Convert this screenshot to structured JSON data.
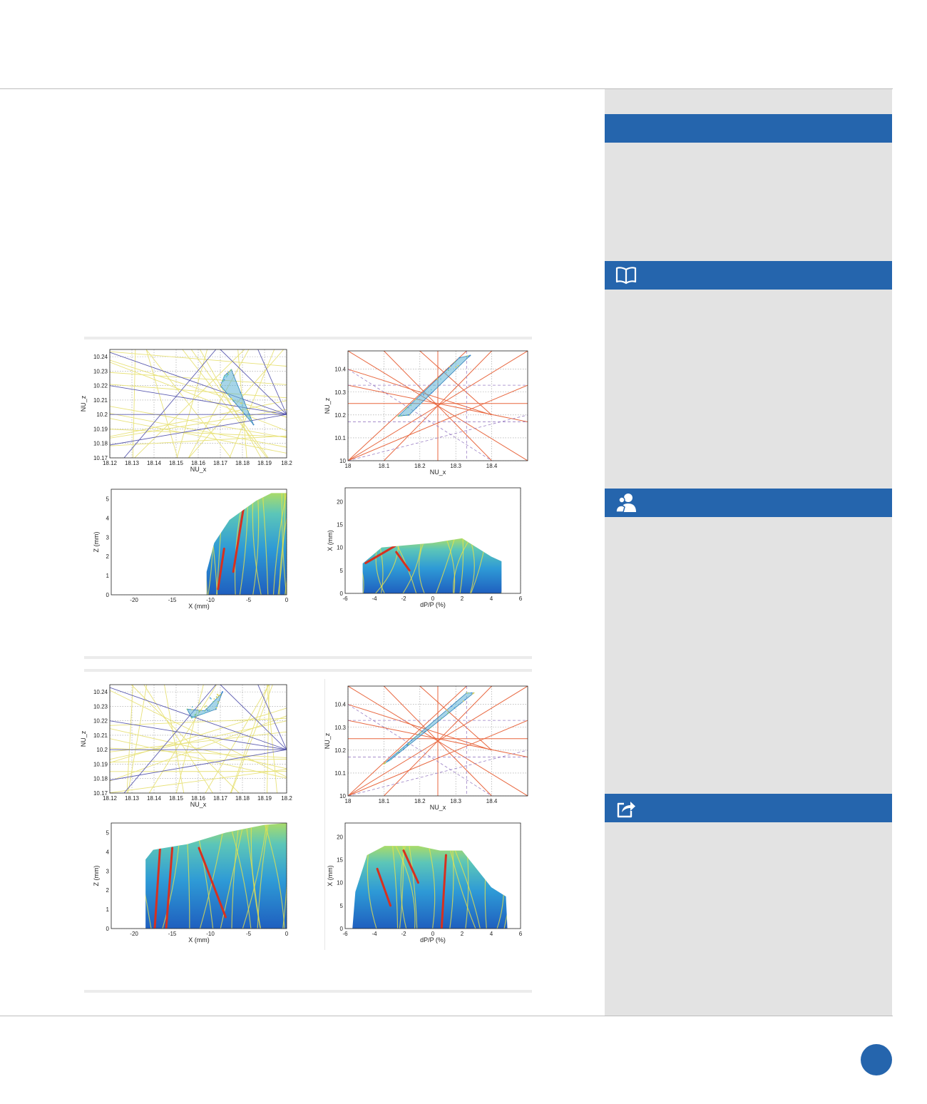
{
  "colors": {
    "accent": "#2565ad",
    "sidebar_bg": "#e3e3e3",
    "tune_lines_blue": "#5b5bb0",
    "tune_lines_yellow": "#e8e27a",
    "resonance_lines_red": "#e8673f",
    "resonance_lines_purple": "#9a7fc4"
  },
  "sidebar": {
    "sections": [
      {
        "icon": "none"
      },
      {
        "icon": "book-icon"
      },
      {
        "icon": "people-icon"
      },
      {
        "icon": "share-icon"
      }
    ]
  },
  "page_number": "",
  "chart_data": [
    {
      "type": "scatter",
      "panel": 1,
      "title": "",
      "xlabel": "NU_x",
      "ylabel": "NU_z",
      "xlim": [
        18.12,
        18.2
      ],
      "ylim": [
        10.17,
        10.245
      ],
      "xticks": [
        18.12,
        18.13,
        18.14,
        18.15,
        18.16,
        18.17,
        18.18,
        18.19,
        18.2
      ],
      "xticklabels": [
        "18.12",
        "18.13",
        "18.14",
        "18.15",
        "18.16",
        "18.17",
        "18.18",
        "18.19",
        "18.2"
      ],
      "yticks": [
        10.17,
        10.18,
        10.19,
        10.2,
        10.21,
        10.22,
        10.23,
        10.24
      ],
      "yticklabels": [
        "10.17",
        "10.18",
        "10.19",
        "10.2",
        "10.21",
        "10.22",
        "10.23",
        "10.24"
      ],
      "grid": true,
      "tune_footprint": [
        [
          18.172,
          10.227
        ],
        [
          18.175,
          10.231
        ],
        [
          18.185,
          10.193
        ],
        [
          18.17,
          10.22
        ],
        [
          18.172,
          10.227
        ]
      ]
    },
    {
      "type": "scatter",
      "panel": 1,
      "title": "",
      "xlabel": "NU_x",
      "ylabel": "NU_z",
      "xlim": [
        18.0,
        18.5
      ],
      "ylim": [
        10.0,
        10.48
      ],
      "xticks": [
        18.0,
        18.1,
        18.2,
        18.3,
        18.4
      ],
      "xticklabels": [
        "18",
        "18.1",
        "18.2",
        "18.3",
        "18.4"
      ],
      "yticks": [
        10.0,
        10.1,
        10.2,
        10.3,
        10.4
      ],
      "yticklabels": [
        "10",
        "10.1",
        "10.2",
        "10.3",
        "10.4"
      ],
      "grid": true,
      "tune_footprint": [
        [
          18.14,
          10.195
        ],
        [
          18.17,
          10.2
        ],
        [
          18.34,
          10.46
        ],
        [
          18.31,
          10.45
        ],
        [
          18.14,
          10.195
        ]
      ]
    },
    {
      "type": "heatmap",
      "panel": 1,
      "title": "",
      "xlabel": "X (mm)",
      "ylabel": "Z (mm)",
      "xlim": [
        -23,
        0
      ],
      "ylim": [
        0,
        5.5
      ],
      "xticks": [
        -20,
        -15,
        -10,
        -5,
        0
      ],
      "xticklabels": [
        "-20",
        "-15",
        "-10",
        "-5",
        "0"
      ],
      "yticks": [
        0,
        1,
        2,
        3,
        4,
        5
      ],
      "yticklabels": [
        "0",
        "1",
        "2",
        "3",
        "4",
        "5"
      ],
      "grid": true,
      "region_boundary": [
        [
          -10.5,
          0
        ],
        [
          -10.5,
          1.2
        ],
        [
          -9.5,
          2.7
        ],
        [
          -7.5,
          3.9
        ],
        [
          -4,
          4.9
        ],
        [
          -2,
          5.3
        ],
        [
          0,
          5.3
        ],
        [
          0,
          0
        ]
      ],
      "hot_bands": [
        [
          [
            -7,
            1.2
          ],
          [
            -5.5,
            4.9
          ]
        ],
        [
          [
            -9,
            0.3
          ],
          [
            -8.2,
            2.4
          ]
        ]
      ]
    },
    {
      "type": "heatmap",
      "panel": 1,
      "title": "",
      "xlabel": "dP/P (%)",
      "ylabel": "X (mm)",
      "xlim": [
        -6,
        6
      ],
      "ylim": [
        0,
        23
      ],
      "xticks": [
        -6,
        -4,
        -2,
        0,
        2,
        4,
        6
      ],
      "xticklabels": [
        "-6",
        "-4",
        "-2",
        "0",
        "2",
        "4",
        "6"
      ],
      "yticks": [
        0,
        5,
        10,
        15,
        20
      ],
      "yticklabels": [
        "0",
        "5",
        "10",
        "15",
        "20"
      ],
      "grid": true,
      "region_boundary": [
        [
          -4.8,
          0
        ],
        [
          -4.8,
          6.5
        ],
        [
          -3.5,
          10
        ],
        [
          0,
          11
        ],
        [
          2,
          12
        ],
        [
          3,
          10
        ],
        [
          4,
          8
        ],
        [
          4.7,
          7
        ],
        [
          4.7,
          0
        ]
      ],
      "hot_bands": [
        [
          [
            -4.6,
            6.6
          ],
          [
            -2.6,
            10.3
          ]
        ],
        [
          [
            -2.5,
            9
          ],
          [
            -1.6,
            5
          ]
        ]
      ]
    },
    {
      "type": "scatter",
      "panel": 2,
      "title": "",
      "xlabel": "NU_x",
      "ylabel": "NU_z",
      "xlim": [
        18.12,
        18.2
      ],
      "ylim": [
        10.17,
        10.245
      ],
      "xticks": [
        18.12,
        18.13,
        18.14,
        18.15,
        18.16,
        18.17,
        18.18,
        18.19,
        18.2
      ],
      "xticklabels": [
        "18.12",
        "18.13",
        "18.14",
        "18.15",
        "18.16",
        "18.17",
        "18.18",
        "18.19",
        "18.2"
      ],
      "yticks": [
        10.17,
        10.18,
        10.19,
        10.2,
        10.21,
        10.22,
        10.23,
        10.24
      ],
      "yticklabels": [
        "10.17",
        "10.18",
        "10.19",
        "10.2",
        "10.21",
        "10.22",
        "10.23",
        "10.24"
      ],
      "grid": true,
      "tune_footprint": [
        [
          18.155,
          10.228
        ],
        [
          18.163,
          10.227
        ],
        [
          18.17,
          10.238
        ],
        [
          18.171,
          10.24
        ],
        [
          18.168,
          10.228
        ],
        [
          18.157,
          10.222
        ],
        [
          18.155,
          10.228
        ]
      ]
    },
    {
      "type": "scatter",
      "panel": 2,
      "title": "",
      "xlabel": "NU_x",
      "ylabel": "NU_z",
      "xlim": [
        18.0,
        18.5
      ],
      "ylim": [
        10.0,
        10.48
      ],
      "xticks": [
        18.0,
        18.1,
        18.2,
        18.3,
        18.4
      ],
      "xticklabels": [
        "18",
        "18.1",
        "18.2",
        "18.3",
        "18.4"
      ],
      "yticks": [
        10.0,
        10.1,
        10.2,
        10.3,
        10.4
      ],
      "yticklabels": [
        "10",
        "10.1",
        "10.2",
        "10.3",
        "10.4"
      ],
      "grid": true,
      "tune_footprint": [
        [
          18.1,
          10.14
        ],
        [
          18.12,
          10.16
        ],
        [
          18.35,
          10.45
        ],
        [
          18.33,
          10.45
        ],
        [
          18.1,
          10.14
        ]
      ]
    },
    {
      "type": "heatmap",
      "panel": 2,
      "title": "",
      "xlabel": "X (mm)",
      "ylabel": "Z (mm)",
      "xlim": [
        -23,
        0
      ],
      "ylim": [
        0,
        5.5
      ],
      "xticks": [
        -20,
        -15,
        -10,
        -5,
        0
      ],
      "xticklabels": [
        "-20",
        "-15",
        "-10",
        "-5",
        "0"
      ],
      "yticks": [
        0,
        1,
        2,
        3,
        4,
        5
      ],
      "yticklabels": [
        "0",
        "1",
        "2",
        "3",
        "4",
        "5"
      ],
      "grid": true,
      "region_boundary": [
        [
          -18.5,
          0
        ],
        [
          -18.5,
          3.6
        ],
        [
          -17.5,
          4.1
        ],
        [
          -13,
          4.4
        ],
        [
          -8,
          5
        ],
        [
          -3,
          5.4
        ],
        [
          0,
          5.5
        ],
        [
          0,
          0
        ]
      ],
      "hot_bands": [
        [
          [
            -17.3,
            0
          ],
          [
            -16.6,
            4.2
          ]
        ],
        [
          [
            -15.8,
            0
          ],
          [
            -15,
            4.2
          ]
        ],
        [
          [
            -11.5,
            4.2
          ],
          [
            -8,
            0.6
          ]
        ]
      ]
    },
    {
      "type": "heatmap",
      "panel": 2,
      "title": "",
      "xlabel": "dP/P (%)",
      "ylabel": "X (mm)",
      "xlim": [
        -6,
        6
      ],
      "ylim": [
        0,
        23
      ],
      "xticks": [
        -6,
        -4,
        -2,
        0,
        2,
        4,
        6
      ],
      "xticklabels": [
        "-6",
        "-4",
        "-2",
        "0",
        "2",
        "4",
        "6"
      ],
      "yticks": [
        0,
        5,
        10,
        15,
        20
      ],
      "yticklabels": [
        "0",
        "5",
        "10",
        "15",
        "20"
      ],
      "grid": true,
      "region_boundary": [
        [
          -5.5,
          0
        ],
        [
          -5.3,
          8
        ],
        [
          -4.5,
          16
        ],
        [
          -3.3,
          18
        ],
        [
          -1,
          18
        ],
        [
          0.5,
          17
        ],
        [
          2,
          17
        ],
        [
          3,
          13
        ],
        [
          4,
          9
        ],
        [
          5,
          7
        ],
        [
          5.1,
          0
        ]
      ],
      "hot_bands": [
        [
          [
            -3.8,
            13
          ],
          [
            -2.9,
            5
          ]
        ],
        [
          [
            -2,
            17
          ],
          [
            -1,
            10
          ]
        ],
        [
          [
            0.6,
            0
          ],
          [
            0.9,
            16
          ]
        ]
      ]
    }
  ]
}
